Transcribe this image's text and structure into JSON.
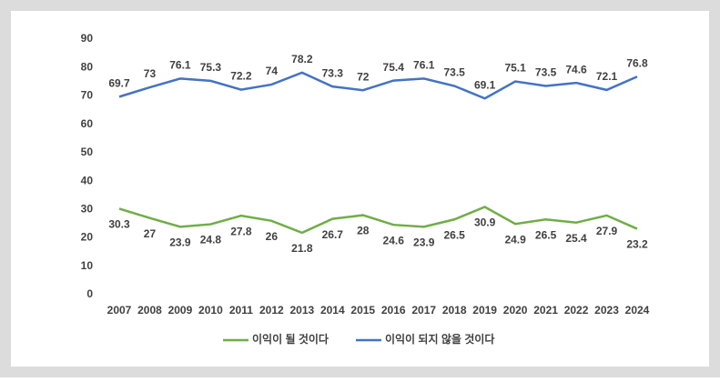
{
  "chart_data": {
    "type": "line",
    "categories": [
      "2007",
      "2008",
      "2009",
      "2010",
      "2011",
      "2012",
      "2013",
      "2014",
      "2015",
      "2016",
      "2017",
      "2018",
      "2019",
      "2020",
      "2021",
      "2022",
      "2023",
      "2024"
    ],
    "series": [
      {
        "name": "이익이 될 것이다",
        "color": "#70ad47",
        "values": [
          30.3,
          27,
          23.9,
          24.8,
          27.8,
          26,
          21.8,
          26.7,
          28,
          24.6,
          23.9,
          26.5,
          30.9,
          24.9,
          26.5,
          25.4,
          27.9,
          23.2
        ]
      },
      {
        "name": "이익이 되지 않을 것이다",
        "color": "#4472c4",
        "values": [
          69.7,
          73,
          76.1,
          75.3,
          72.2,
          74,
          78.2,
          73.3,
          72,
          75.4,
          76.1,
          73.5,
          69.1,
          75.1,
          73.5,
          74.6,
          72.1,
          76.8
        ]
      }
    ],
    "ylim": [
      0,
      90
    ],
    "yticks": [
      0,
      10,
      20,
      30,
      40,
      50,
      60,
      70,
      80,
      90
    ],
    "grid": false,
    "legend": "bottom"
  }
}
